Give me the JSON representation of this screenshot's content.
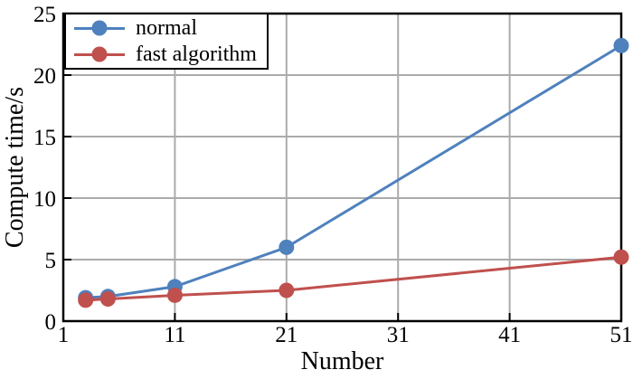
{
  "chart_data": {
    "type": "line",
    "title": "",
    "xlabel": "Number",
    "ylabel": "Compute time/s",
    "x": [
      3,
      5,
      11,
      21,
      51
    ],
    "series": [
      {
        "name": "normal",
        "color": "#4F81BD",
        "values": [
          1.9,
          2.0,
          2.8,
          6.0,
          22.4
        ]
      },
      {
        "name": "fast algorithm",
        "color": "#C0504D",
        "values": [
          1.7,
          1.8,
          2.1,
          2.5,
          5.2
        ]
      }
    ],
    "xlim": [
      1,
      51
    ],
    "ylim": [
      0,
      25
    ],
    "x_ticks": [
      1,
      11,
      21,
      31,
      41,
      51
    ],
    "y_ticks": [
      0,
      5,
      10,
      15,
      20,
      25
    ],
    "grid": true,
    "legend_position": "top-left",
    "marker": "circle",
    "colors": {
      "grid": "#ABABAB",
      "axis": "#000000",
      "background": "#FFFFFF"
    }
  }
}
